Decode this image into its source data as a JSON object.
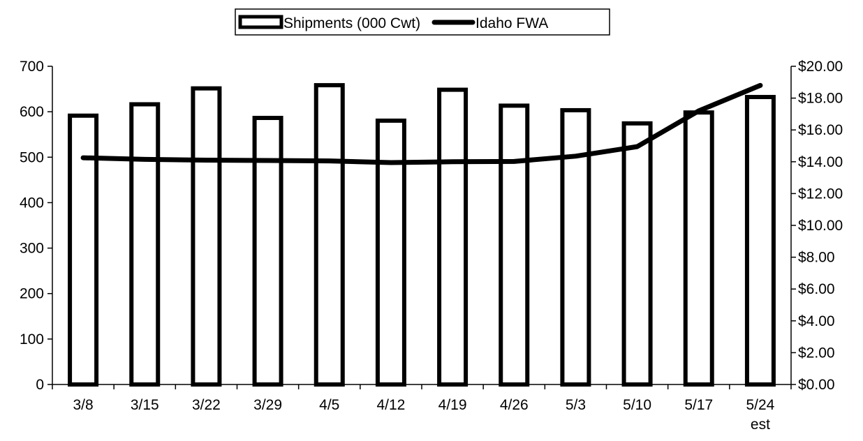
{
  "chart_data": {
    "type": "bar",
    "categories": [
      "3/8",
      "3/15",
      "3/22",
      "3/29",
      "4/5",
      "4/12",
      "4/19",
      "4/26",
      "5/3",
      "5/10",
      "5/17",
      "5/24"
    ],
    "category_sublabels": [
      "",
      "",
      "",
      "",
      "",
      "",
      "",
      "",
      "",
      "",
      "",
      "est"
    ],
    "series": [
      {
        "name": "Shipments (000 Cwt)",
        "type": "bar",
        "axis": "left",
        "values": [
          596,
          621,
          656,
          591,
          663,
          585,
          653,
          618,
          608,
          579,
          603,
          637
        ]
      },
      {
        "name": "Idaho FWA",
        "type": "line",
        "axis": "right",
        "values": [
          14.25,
          14.15,
          14.1,
          14.08,
          14.05,
          13.95,
          14.0,
          14.02,
          14.35,
          14.95,
          17.2,
          18.8
        ]
      }
    ],
    "left_axis": {
      "ylim": [
        0,
        700
      ],
      "ticks": [
        0,
        100,
        200,
        300,
        400,
        500,
        600,
        700
      ],
      "tick_labels": [
        "0",
        "100",
        "200",
        "300",
        "400",
        "500",
        "600",
        "700"
      ]
    },
    "right_axis": {
      "ylim": [
        0,
        20
      ],
      "ticks": [
        0,
        2,
        4,
        6,
        8,
        10,
        12,
        14,
        16,
        18,
        20
      ],
      "tick_labels": [
        "$0.00",
        "$2.00",
        "$4.00",
        "$6.00",
        "$8.00",
        "$10.00",
        "$12.00",
        "$14.00",
        "$16.00",
        "$18.00",
        "$20.00"
      ]
    },
    "legend": {
      "position": "top-center"
    },
    "grid": false,
    "colors": {
      "bar_stroke": "#000000",
      "bar_fill": "#ffffff",
      "line": "#000000"
    }
  }
}
